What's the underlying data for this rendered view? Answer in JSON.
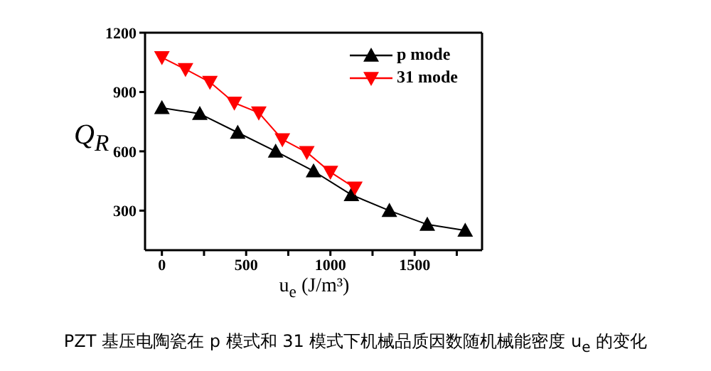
{
  "chart_data": {
    "type": "line",
    "xlabel": "u$_{e}$ (J/m³)",
    "ylabel": "Q$_{R}$",
    "annotations": [
      "PZT 基压电陶瓷在 p 模式和 31 模式下机械品质因数随机械能密度 u$_{e}$ 的变化"
    ],
    "series": [
      {
        "name": "p mode",
        "color": "#000000",
        "marker": "triangle",
        "x": [
          0,
          225,
          450,
          675,
          900,
          1125,
          1350,
          1575,
          1800
        ],
        "values": [
          820,
          790,
          695,
          600,
          500,
          380,
          300,
          230,
          200
        ]
      },
      {
        "name": "31 mode",
        "color": "#ff0000",
        "marker": "triangle-down",
        "x": [
          0,
          140,
          285,
          430,
          575,
          715,
          860,
          1000,
          1145
        ],
        "values": [
          1075,
          1015,
          950,
          845,
          795,
          660,
          595,
          495,
          415
        ]
      }
    ],
    "xlim": [
      -100,
      1900
    ],
    "xticks": [
      0,
      {
        "value": 250,
        "label": null
      },
      500,
      {
        "value": 750,
        "label": null
      },
      1000,
      {
        "value": 1250,
        "label": null
      },
      1500,
      {
        "value": 1750,
        "label": null
      }
    ],
    "ylim": [
      100,
      1200
    ],
    "yticks": [
      300,
      600,
      900,
      1200
    ],
    "grid": false,
    "legend": "top right",
    "line_style": "solid"
  }
}
